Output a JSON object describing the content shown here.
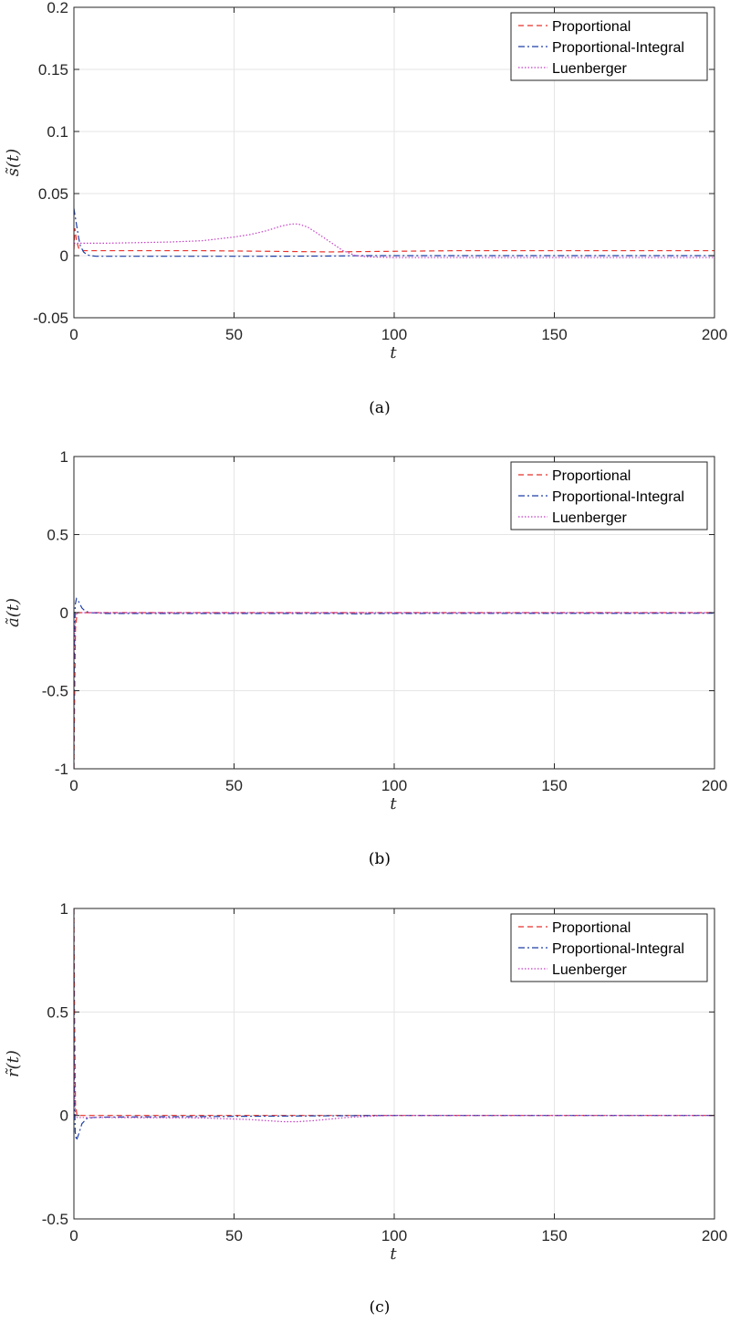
{
  "colors": {
    "proportional": "#e8322a",
    "proportional_integral": "#1f3fa6",
    "luenberger": "#c43fc4",
    "grid": "#e5e5e5",
    "axis": "#262626"
  },
  "chart_data": [
    {
      "type": "line",
      "caption": "(a)",
      "xlabel": "t",
      "ylabel": "s̃(t)",
      "xlim": [
        0,
        200
      ],
      "ylim": [
        -0.05,
        0.2
      ],
      "xticks": [
        0,
        50,
        100,
        150,
        200
      ],
      "xtick_labels": [
        "0",
        "50",
        "100",
        "150",
        "200"
      ],
      "yticks": [
        -0.05,
        0,
        0.05,
        0.1,
        0.15,
        0.2
      ],
      "ytick_labels": [
        "-0.05",
        "0",
        "0.05",
        "0.1",
        "0.15",
        "0.2"
      ],
      "grid": true,
      "legend": {
        "position": "top-right",
        "entries": [
          "Proportional",
          "Proportional-Integral",
          "Luenberger"
        ]
      },
      "series": [
        {
          "name": "Proportional",
          "style": "dashed",
          "x": [
            0,
            0.3,
            0.8,
            1.5,
            3,
            5,
            20,
            40,
            60,
            80,
            100,
            120,
            150,
            200
          ],
          "y": [
            0.005,
            0.022,
            0.012,
            0.006,
            0.004,
            0.004,
            0.004,
            0.004,
            0.0035,
            0.003,
            0.0035,
            0.004,
            0.004,
            0.004
          ]
        },
        {
          "name": "Proportional-Integral",
          "style": "dashdot",
          "x": [
            0,
            0.5,
            1,
            1.5,
            2,
            3,
            4,
            5,
            7,
            10,
            30,
            60,
            80,
            90,
            100,
            150,
            200
          ],
          "y": [
            0.038,
            0.03,
            0.022,
            0.014,
            0.008,
            0.003,
            0.001,
            0.0,
            -0.0005,
            -0.0005,
            -0.0005,
            -0.0005,
            -0.0003,
            0.0,
            0.0,
            0.0,
            0.0
          ]
        },
        {
          "name": "Luenberger",
          "style": "dotted",
          "x": [
            0,
            1,
            2,
            3,
            5,
            10,
            20,
            30,
            40,
            50,
            55,
            60,
            65,
            68,
            70,
            73,
            76,
            80,
            84,
            88,
            92,
            100,
            120,
            150,
            200
          ],
          "y": [
            0.01,
            0.01,
            0.01,
            0.01,
            0.01,
            0.01,
            0.0105,
            0.011,
            0.012,
            0.015,
            0.017,
            0.02,
            0.024,
            0.0255,
            0.0255,
            0.023,
            0.018,
            0.011,
            0.004,
            0.0,
            -0.001,
            -0.0015,
            -0.0015,
            -0.0015,
            -0.0015
          ]
        }
      ]
    },
    {
      "type": "line",
      "caption": "(b)",
      "xlabel": "t",
      "ylabel": "ã(t)",
      "xlim": [
        0,
        200
      ],
      "ylim": [
        -1,
        1
      ],
      "xticks": [
        0,
        50,
        100,
        150,
        200
      ],
      "xtick_labels": [
        "0",
        "50",
        "100",
        "150",
        "200"
      ],
      "yticks": [
        -1,
        -0.5,
        0,
        0.5,
        1
      ],
      "ytick_labels": [
        "-1",
        "-0.5",
        "0",
        "0.5",
        "1"
      ],
      "grid": true,
      "legend": {
        "position": "top-right",
        "entries": [
          "Proportional",
          "Proportional-Integral",
          "Luenberger"
        ]
      },
      "series": [
        {
          "name": "Proportional",
          "style": "dashed",
          "x": [
            0,
            0.2,
            0.5,
            1,
            2,
            5,
            200
          ],
          "y": [
            -1,
            -0.6,
            -0.1,
            0.0,
            0.0,
            0.0,
            0.0
          ]
        },
        {
          "name": "Proportional-Integral",
          "style": "dashdot",
          "x": [
            0,
            0.1,
            0.4,
            0.8,
            1.5,
            2.5,
            3.5,
            5,
            10,
            80,
            90,
            95,
            200
          ],
          "y": [
            -1,
            -0.3,
            0.05,
            0.09,
            0.07,
            0.03,
            0.01,
            0.0,
            -0.005,
            -0.005,
            -0.008,
            -0.005,
            -0.004
          ]
        },
        {
          "name": "Luenberger",
          "style": "dotted",
          "x": [
            0,
            0.2,
            0.5,
            1,
            3,
            200
          ],
          "y": [
            -0.3,
            -0.15,
            -0.03,
            0.0,
            0.0,
            0.0
          ]
        }
      ]
    },
    {
      "type": "line",
      "caption": "(c)",
      "xlabel": "t",
      "ylabel": "r̃(t)",
      "xlim": [
        0,
        200
      ],
      "ylim": [
        -0.5,
        1
      ],
      "xticks": [
        0,
        50,
        100,
        150,
        200
      ],
      "xtick_labels": [
        "0",
        "50",
        "100",
        "150",
        "200"
      ],
      "yticks": [
        -0.5,
        0,
        0.5,
        1
      ],
      "ytick_labels": [
        "-0.5",
        "0",
        "0.5",
        "1"
      ],
      "grid": true,
      "legend": {
        "position": "top-right",
        "entries": [
          "Proportional",
          "Proportional-Integral",
          "Luenberger"
        ]
      },
      "series": [
        {
          "name": "Proportional",
          "style": "dashed",
          "x": [
            0,
            0.2,
            0.5,
            1,
            3,
            200
          ],
          "y": [
            1.0,
            0.5,
            0.05,
            0.0,
            0.0,
            0.0
          ]
        },
        {
          "name": "Proportional-Integral",
          "style": "dashdot",
          "x": [
            0,
            0.1,
            0.4,
            0.8,
            1.5,
            2.5,
            4,
            6,
            10,
            100,
            200
          ],
          "y": [
            1.0,
            0.2,
            -0.08,
            -0.12,
            -0.09,
            -0.04,
            -0.015,
            -0.01,
            -0.008,
            0.0,
            0.0
          ]
        },
        {
          "name": "Luenberger",
          "style": "dotted",
          "x": [
            0,
            0.2,
            0.5,
            1,
            3,
            10,
            40,
            55,
            65,
            70,
            75,
            85,
            95,
            100,
            200
          ],
          "y": [
            0.3,
            0.1,
            0.0,
            -0.01,
            -0.01,
            -0.01,
            -0.012,
            -0.02,
            -0.03,
            -0.03,
            -0.025,
            -0.01,
            -0.002,
            0.0,
            0.0
          ]
        }
      ]
    }
  ]
}
